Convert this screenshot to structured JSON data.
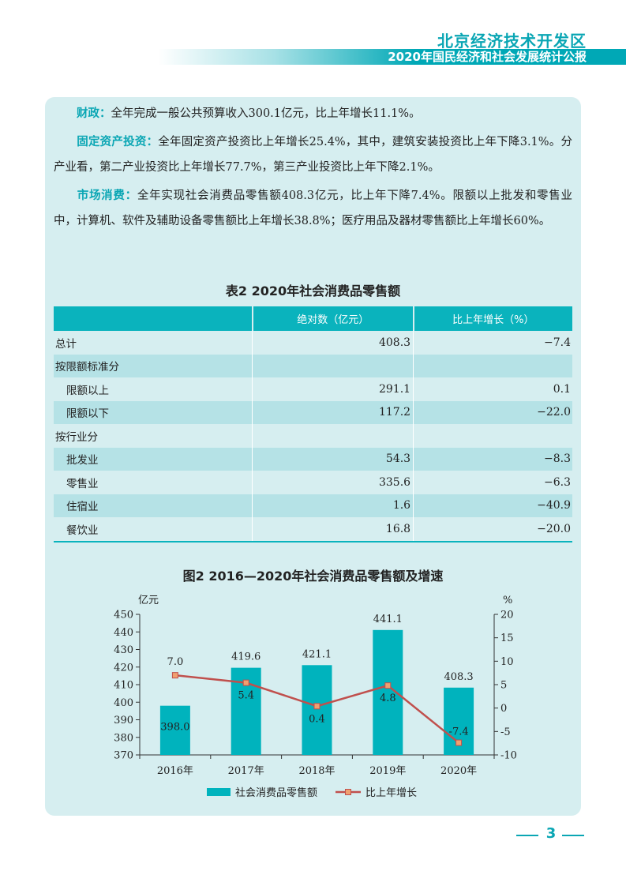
{
  "header": {
    "title": "北京经济技术开发区",
    "subtitle": "2020年国民经济和社会发展统计公报"
  },
  "paragraphs": [
    {
      "lead": "财政：",
      "text": "全年完成一般公共预算收入300.1亿元，比上年增长11.1%。"
    },
    {
      "lead": "固定资产投资：",
      "text": "全年固定资产投资比上年增长25.4%，其中，建筑安装投资比上年下降3.1%。分产业看，第二产业投资比上年增长77.7%，第三产业投资比上年下降2.1%。"
    },
    {
      "lead": "市场消费：",
      "text": "全年实现社会消费品零售额408.3亿元，比上年下降7.4%。限额以上批发和零售业中，计算机、软件及辅助设备零售额比上年增长38.8%；医疗用品及器材零售额比上年增长60%。"
    }
  ],
  "table": {
    "title": "表2  2020年社会消费品零售额",
    "headers": [
      "",
      "绝对数（亿元）",
      "比上年增长（%）"
    ],
    "rows": [
      {
        "label": "总计",
        "value": "408.3",
        "growth": "−7.4"
      },
      {
        "label": "按限额标准分",
        "value": "",
        "growth": ""
      },
      {
        "label": "限额以上",
        "value": "291.1",
        "growth": "0.1"
      },
      {
        "label": "限额以下",
        "value": "117.2",
        "growth": "−22.0"
      },
      {
        "label": "按行业分",
        "value": "",
        "growth": ""
      },
      {
        "label": "批发业",
        "value": "54.3",
        "growth": "−8.3"
      },
      {
        "label": "零售业",
        "value": "335.6",
        "growth": "−6.3"
      },
      {
        "label": "住宿业",
        "value": "1.6",
        "growth": "−40.9"
      },
      {
        "label": "餐饮业",
        "value": "16.8",
        "growth": "−20.0"
      }
    ]
  },
  "colors": {
    "accent": "#0aa6b4",
    "bar": "#00b3bd",
    "line": "#c0504d",
    "marker": "#f0a070"
  },
  "chart_data": {
    "type": "bar",
    "title": "图2  2016—2020年社会消费品零售额及增速",
    "categories": [
      "2016年",
      "2017年",
      "2018年",
      "2019年",
      "2020年"
    ],
    "y_left_label": "亿元",
    "y_right_label": "%",
    "ylim_left": [
      370,
      450
    ],
    "ylim_right": [
      -10,
      20
    ],
    "left_ticks": [
      370,
      380,
      390,
      400,
      410,
      420,
      430,
      440,
      450
    ],
    "right_ticks": [
      "20",
      "15",
      "10",
      "5",
      "0",
      "-5",
      "-10"
    ],
    "series": [
      {
        "name": "社会消费品零售额",
        "type": "bar",
        "values": [
          398.0,
          419.6,
          421.1,
          441.1,
          408.3
        ],
        "labels": [
          "398.0",
          "419.6",
          "421.1",
          "441.1",
          "408.3"
        ]
      },
      {
        "name": "比上年增长",
        "type": "line",
        "values": [
          7.0,
          5.4,
          0.4,
          4.8,
          -7.4
        ],
        "labels": [
          "7.0",
          "5.4",
          "0.4",
          "4.8",
          "-7.4"
        ]
      }
    ],
    "legend": "bottom"
  },
  "footer": {
    "page_number": "3"
  }
}
